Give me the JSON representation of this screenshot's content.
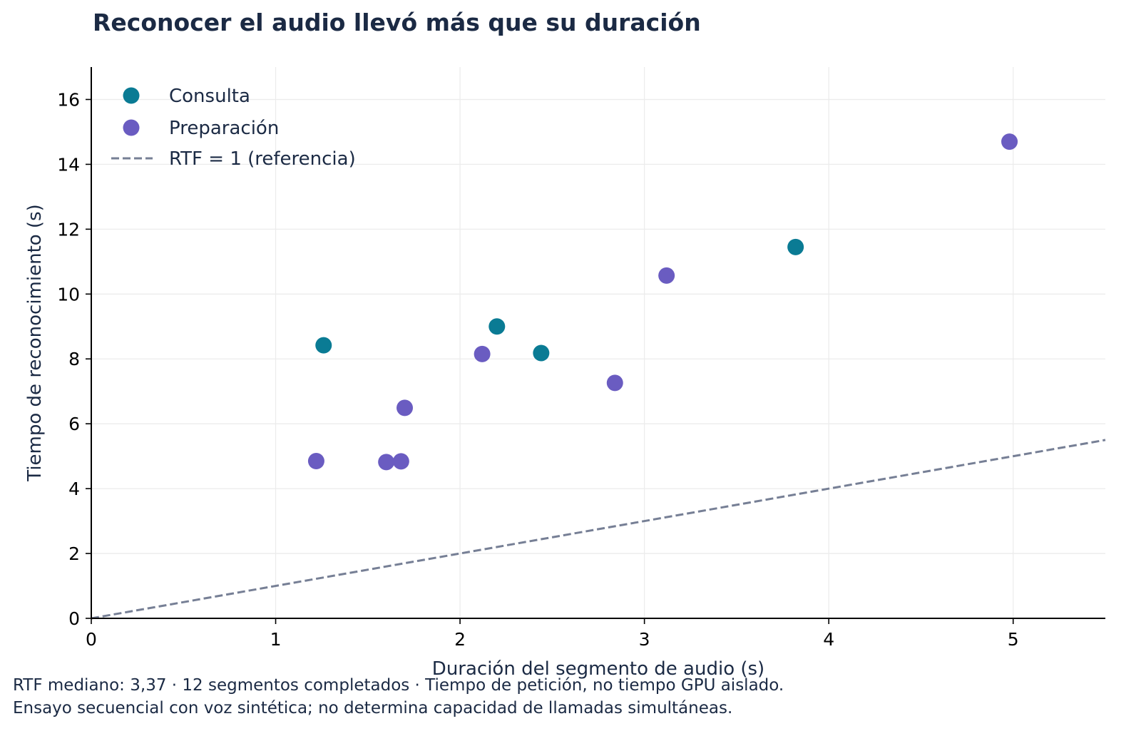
{
  "colors": {
    "consulta": "#0a7b94",
    "preparacion": "#6a5cc1",
    "reference": "#767f95",
    "text": "#1b2a44",
    "grid": "#ececec",
    "axis": "#000000"
  },
  "footnotes": [
    "RTF mediano: 3,37 · 12 segmentos completados · Tiempo de petición, no tiempo GPU aislado.",
    "Ensayo secuencial con voz sintética; no determina capacidad de llamadas simultáneas."
  ],
  "chart_data": {
    "type": "scatter",
    "title": "Reconocer el audio llevó más que su duración",
    "xlabel": "Duración del segmento de audio (s)",
    "ylabel": "Tiempo de reconocimiento (s)",
    "xlim": [
      0,
      5.5
    ],
    "ylim": [
      0,
      17
    ],
    "xticks": [
      0,
      1,
      2,
      3,
      4,
      5
    ],
    "yticks": [
      0,
      2,
      4,
      6,
      8,
      10,
      12,
      14,
      16
    ],
    "grid": true,
    "legend_position": "top-left",
    "series": [
      {
        "name": "Consulta",
        "color_key": "consulta",
        "points": [
          {
            "x": 1.26,
            "y": 8.42
          },
          {
            "x": 2.2,
            "y": 9.0
          },
          {
            "x": 2.44,
            "y": 8.18
          },
          {
            "x": 3.82,
            "y": 11.45
          }
        ]
      },
      {
        "name": "Preparación",
        "color_key": "preparacion",
        "points": [
          {
            "x": 1.22,
            "y": 4.85
          },
          {
            "x": 1.6,
            "y": 4.82
          },
          {
            "x": 1.68,
            "y": 4.84
          },
          {
            "x": 1.7,
            "y": 6.49
          },
          {
            "x": 2.12,
            "y": 8.15
          },
          {
            "x": 2.84,
            "y": 7.26
          },
          {
            "x": 3.12,
            "y": 10.57
          },
          {
            "x": 4.98,
            "y": 14.7
          }
        ]
      }
    ],
    "reference_line": {
      "name": "RTF = 1 (referencia)",
      "slope": 1,
      "style": "dashed"
    }
  }
}
